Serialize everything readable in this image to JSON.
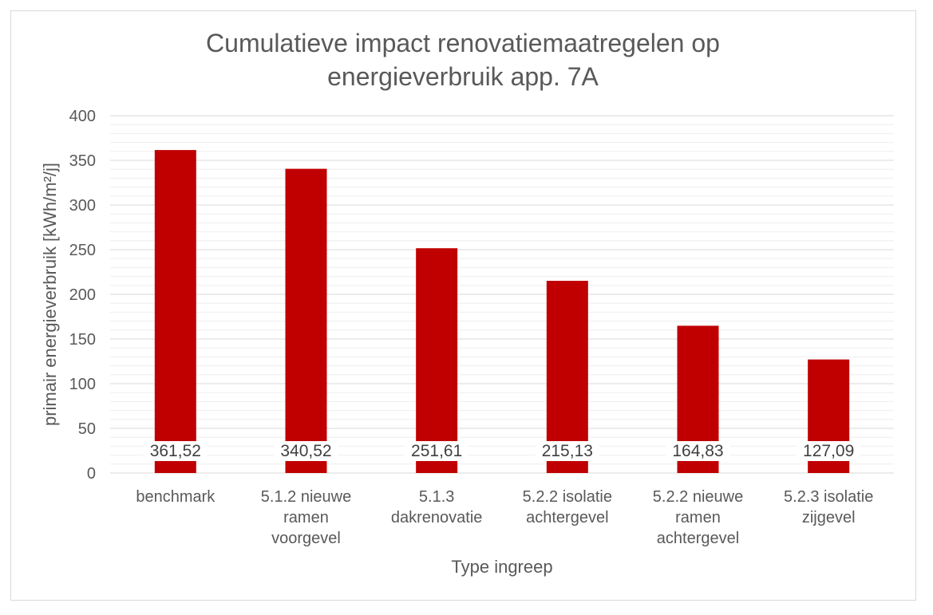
{
  "chart_data": {
    "type": "bar",
    "title": [
      "Cumulatieve impact renovatiemaatregelen op",
      "energieverbruik app. 7A"
    ],
    "xlabel": "Type ingreep",
    "ylabel": "primair energieverbruik [kWh/m²/j]",
    "ylim": [
      0,
      400
    ],
    "yticks": [
      "0",
      "50",
      "100",
      "150",
      "200",
      "250",
      "300",
      "350",
      "400"
    ],
    "categories": [
      [
        "benchmark"
      ],
      [
        "5.1.2 nieuwe",
        "ramen",
        "voorgevel"
      ],
      [
        "5.1.3",
        "dakrenovatie"
      ],
      [
        "5.2.2 isolatie",
        "achtergevel"
      ],
      [
        "5.2.2 nieuwe",
        "ramen",
        "achtergevel"
      ],
      [
        "5.2.3 isolatie",
        "zijgevel"
      ]
    ],
    "values": [
      361.52,
      340.52,
      251.61,
      215.13,
      164.83,
      127.09
    ],
    "data_labels": [
      "361,52",
      "340,52",
      "251,61",
      "215,13",
      "164,83",
      "127,09"
    ],
    "grid": true,
    "legend": "none",
    "bar_color": "#c00000"
  }
}
